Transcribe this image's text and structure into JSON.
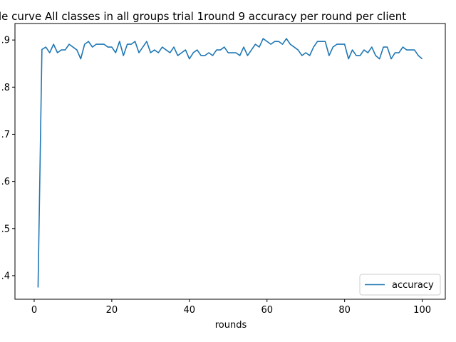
{
  "chart_data": {
    "type": "line",
    "title": "le curve All classes in all groups trial 1round 9 accuracy per round per client",
    "xlabel": "rounds",
    "ylabel": "",
    "xlim": [
      -4.95,
      105.95
    ],
    "ylim": [
      0.35,
      0.935
    ],
    "xticks": [
      0,
      20,
      40,
      60,
      80,
      100
    ],
    "yticks": [
      0.4,
      0.5,
      0.6,
      0.7,
      0.8,
      0.9
    ],
    "ytick_labels": [
      ".4",
      ".5",
      ".6",
      ".7",
      ".8",
      ".9"
    ],
    "grid": false,
    "legend": {
      "position": "lower-right",
      "entries": [
        "accuracy"
      ]
    },
    "line_color": "#1f77b4",
    "series": [
      {
        "name": "accuracy",
        "x": [
          1,
          2,
          3,
          4,
          5,
          6,
          7,
          8,
          9,
          10,
          11,
          12,
          13,
          14,
          15,
          16,
          17,
          18,
          19,
          20,
          21,
          22,
          23,
          24,
          25,
          26,
          27,
          28,
          29,
          30,
          31,
          32,
          33,
          34,
          35,
          36,
          37,
          38,
          39,
          40,
          41,
          42,
          43,
          44,
          45,
          46,
          47,
          48,
          49,
          50,
          51,
          52,
          53,
          54,
          55,
          56,
          57,
          58,
          59,
          60,
          61,
          62,
          63,
          64,
          65,
          66,
          67,
          68,
          69,
          70,
          71,
          72,
          73,
          74,
          75,
          76,
          77,
          78,
          79,
          80,
          81,
          82,
          83,
          84,
          85,
          86,
          87,
          88,
          89,
          90,
          91,
          92,
          93,
          94,
          95,
          96,
          97,
          98,
          99,
          100
        ],
        "values": [
          0.375,
          0.88,
          0.885,
          0.873,
          0.891,
          0.873,
          0.879,
          0.879,
          0.891,
          0.885,
          0.879,
          0.86,
          0.891,
          0.897,
          0.885,
          0.891,
          0.891,
          0.891,
          0.885,
          0.885,
          0.873,
          0.897,
          0.867,
          0.891,
          0.891,
          0.897,
          0.873,
          0.885,
          0.897,
          0.873,
          0.879,
          0.873,
          0.885,
          0.879,
          0.873,
          0.885,
          0.867,
          0.873,
          0.879,
          0.86,
          0.873,
          0.879,
          0.867,
          0.867,
          0.873,
          0.867,
          0.879,
          0.879,
          0.885,
          0.873,
          0.873,
          0.873,
          0.867,
          0.885,
          0.867,
          0.879,
          0.891,
          0.885,
          0.903,
          0.897,
          0.891,
          0.897,
          0.897,
          0.891,
          0.903,
          0.891,
          0.885,
          0.879,
          0.867,
          0.873,
          0.867,
          0.885,
          0.897,
          0.897,
          0.897,
          0.867,
          0.885,
          0.891,
          0.891,
          0.891,
          0.86,
          0.879,
          0.867,
          0.867,
          0.879,
          0.873,
          0.885,
          0.867,
          0.86,
          0.885,
          0.885,
          0.86,
          0.873,
          0.873,
          0.885,
          0.879,
          0.879,
          0.879,
          0.867,
          0.86
        ]
      }
    ]
  }
}
